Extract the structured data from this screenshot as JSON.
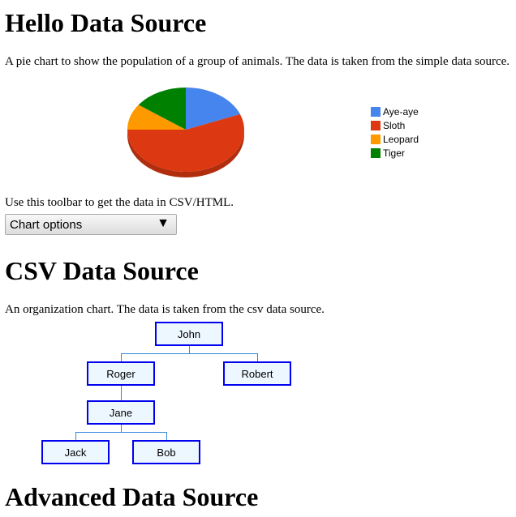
{
  "sections": [
    {
      "title": "Hello Data Source",
      "description": "A pie chart to show the population of a group of animals. The data is taken from the simple data source."
    },
    {
      "title": "CSV Data Source",
      "description": "An organization chart. The data is taken from the csv data source."
    },
    {
      "title": "Advanced Data Source"
    }
  ],
  "toolbar": {
    "caption": "Use this toolbar to get the data in CSV/HTML.",
    "dropdown_label": "Chart options",
    "dropdown_arrow": "▼"
  },
  "chart_data": {
    "type": "pie",
    "is3D": true,
    "legend_position": "right",
    "categories": [
      "Aye-aye",
      "Sloth",
      "Leopard",
      "Tiger"
    ],
    "values": [
      19,
      56,
      10,
      15
    ],
    "colors": [
      "#4684ee",
      "#dc3912",
      "#ff9900",
      "#008000"
    ]
  },
  "org_chart": {
    "nodes": [
      {
        "name": "John",
        "parent": null
      },
      {
        "name": "Roger",
        "parent": "John"
      },
      {
        "name": "Robert",
        "parent": "John"
      },
      {
        "name": "Jane",
        "parent": "Roger"
      },
      {
        "name": "Jack",
        "parent": "Jane"
      },
      {
        "name": "Bob",
        "parent": "Jane"
      }
    ],
    "line_color": "#3388dd",
    "border_color": "#0000ee",
    "fill_color": "#edf7ff"
  }
}
